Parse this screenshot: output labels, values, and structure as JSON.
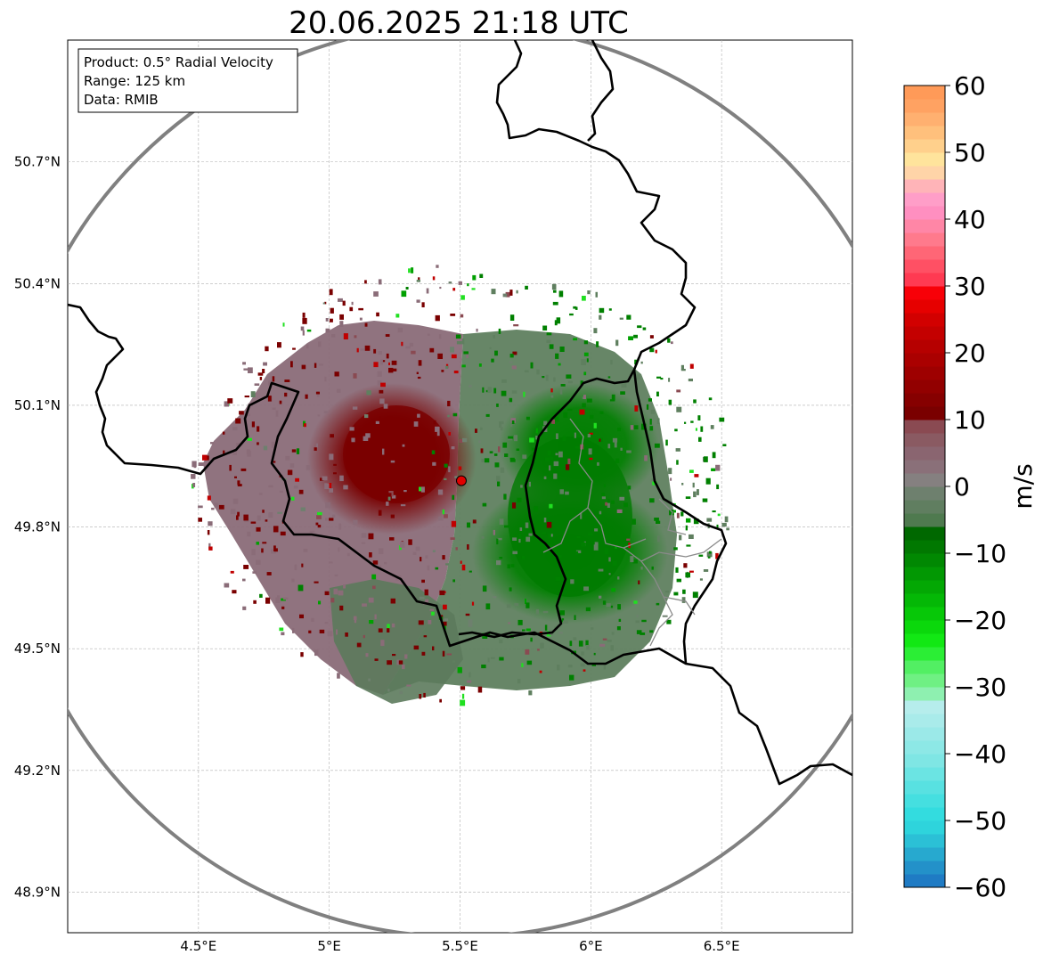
{
  "title": "20.06.2025 21:18 UTC",
  "info_box": {
    "line1": "Product: 0.5° Radial Velocity",
    "line2": "Range: 125 km",
    "line3": "Data: RMIB"
  },
  "map": {
    "lon_range": [
      4.0,
      7.0
    ],
    "lat_range": [
      48.8,
      51.0
    ],
    "lon_ticks": [
      {
        "value": 4.5,
        "label": "4.5°E"
      },
      {
        "value": 5.0,
        "label": "5°E"
      },
      {
        "value": 5.5,
        "label": "5.5°E"
      },
      {
        "value": 6.0,
        "label": "6°E"
      },
      {
        "value": 6.5,
        "label": "6.5°E"
      }
    ],
    "lat_ticks": [
      {
        "value": 50.7,
        "label": "50.7°N"
      },
      {
        "value": 50.4,
        "label": "50.4°N"
      },
      {
        "value": 50.1,
        "label": "50.1°N"
      },
      {
        "value": 49.8,
        "label": "49.8°N"
      },
      {
        "value": 49.5,
        "label": "49.5°N"
      },
      {
        "value": 49.2,
        "label": "49.2°N"
      },
      {
        "value": 48.9,
        "label": "48.9°N"
      }
    ],
    "radar_site": {
      "lon": 5.505,
      "lat": 49.914
    },
    "range_km": 125,
    "gridlines": true
  },
  "colorbar": {
    "label": "m/s",
    "min": -60,
    "max": 60,
    "ticks": [
      {
        "value": 60,
        "label": "60"
      },
      {
        "value": 50,
        "label": "50"
      },
      {
        "value": 40,
        "label": "40"
      },
      {
        "value": 30,
        "label": "30"
      },
      {
        "value": 20,
        "label": "20"
      },
      {
        "value": 10,
        "label": "10"
      },
      {
        "value": 0,
        "label": "0"
      },
      {
        "value": -10,
        "label": "−10"
      },
      {
        "value": -20,
        "label": "−20"
      },
      {
        "value": -30,
        "label": "−30"
      },
      {
        "value": -40,
        "label": "−40"
      },
      {
        "value": -50,
        "label": "−50"
      },
      {
        "value": -60,
        "label": "−60"
      }
    ],
    "stops": [
      {
        "from": -60,
        "to": -58,
        "color": "#1f7bc4"
      },
      {
        "from": -58,
        "to": -56,
        "color": "#2391c9"
      },
      {
        "from": -56,
        "to": -54,
        "color": "#27a9cf"
      },
      {
        "from": -54,
        "to": -52,
        "color": "#2bc0d6"
      },
      {
        "from": -52,
        "to": -50,
        "color": "#2ed4dc"
      },
      {
        "from": -50,
        "to": -48,
        "color": "#33dcdf"
      },
      {
        "from": -48,
        "to": -46,
        "color": "#45dfe0"
      },
      {
        "from": -46,
        "to": -44,
        "color": "#58e1e1"
      },
      {
        "from": -44,
        "to": -42,
        "color": "#6be4e3"
      },
      {
        "from": -42,
        "to": -40,
        "color": "#7fe6e4"
      },
      {
        "from": -40,
        "to": -38,
        "color": "#8de8e6"
      },
      {
        "from": -38,
        "to": -36,
        "color": "#9be9e8"
      },
      {
        "from": -36,
        "to": -34,
        "color": "#a9ebea"
      },
      {
        "from": -34,
        "to": -32,
        "color": "#b6edec"
      },
      {
        "from": -32,
        "to": -30,
        "color": "#8ef0b0"
      },
      {
        "from": -30,
        "to": -28,
        "color": "#6ff083"
      },
      {
        "from": -28,
        "to": -26,
        "color": "#52ef63"
      },
      {
        "from": -26,
        "to": -24,
        "color": "#2bee35"
      },
      {
        "from": -24,
        "to": -22,
        "color": "#12e814"
      },
      {
        "from": -22,
        "to": -20,
        "color": "#0bd80c"
      },
      {
        "from": -20,
        "to": -18,
        "color": "#07c808"
      },
      {
        "from": -18,
        "to": -16,
        "color": "#04b806"
      },
      {
        "from": -16,
        "to": -14,
        "color": "#03a804"
      },
      {
        "from": -14,
        "to": -12,
        "color": "#029803"
      },
      {
        "from": -12,
        "to": -10,
        "color": "#018802"
      },
      {
        "from": -10,
        "to": -8,
        "color": "#017801"
      },
      {
        "from": -8,
        "to": -6,
        "color": "#006800"
      },
      {
        "from": -6,
        "to": -4,
        "color": "#4f7a4f"
      },
      {
        "from": -4,
        "to": -2,
        "color": "#607e60"
      },
      {
        "from": -2,
        "to": 0,
        "color": "#6e806e"
      },
      {
        "from": 0,
        "to": 2,
        "color": "#858080"
      },
      {
        "from": 2,
        "to": 4,
        "color": "#8a7079"
      },
      {
        "from": 4,
        "to": 6,
        "color": "#8a6570"
      },
      {
        "from": 6,
        "to": 8,
        "color": "#8a5a62"
      },
      {
        "from": 8,
        "to": 10,
        "color": "#8a4a52"
      },
      {
        "from": 10,
        "to": 12,
        "color": "#7a0000"
      },
      {
        "from": 12,
        "to": 14,
        "color": "#860000"
      },
      {
        "from": 14,
        "to": 16,
        "color": "#920000"
      },
      {
        "from": 16,
        "to": 18,
        "color": "#9e0000"
      },
      {
        "from": 18,
        "to": 20,
        "color": "#aa0000"
      },
      {
        "from": 20,
        "to": 22,
        "color": "#b60000"
      },
      {
        "from": 22,
        "to": 24,
        "color": "#c40000"
      },
      {
        "from": 24,
        "to": 26,
        "color": "#d20000"
      },
      {
        "from": 26,
        "to": 28,
        "color": "#e60000"
      },
      {
        "from": 28,
        "to": 30,
        "color": "#f80008"
      },
      {
        "from": 30,
        "to": 32,
        "color": "#ff3a52"
      },
      {
        "from": 32,
        "to": 34,
        "color": "#ff5064"
      },
      {
        "from": 34,
        "to": 36,
        "color": "#ff6676"
      },
      {
        "from": 36,
        "to": 38,
        "color": "#ff7a8c"
      },
      {
        "from": 38,
        "to": 40,
        "color": "#ff86a6"
      },
      {
        "from": 40,
        "to": 42,
        "color": "#ff8fc0"
      },
      {
        "from": 42,
        "to": 44,
        "color": "#ff9ec8"
      },
      {
        "from": 44,
        "to": 46,
        "color": "#ffb4b8"
      },
      {
        "from": 46,
        "to": 48,
        "color": "#ffd4a8"
      },
      {
        "from": 48,
        "to": 50,
        "color": "#ffe49c"
      },
      {
        "from": 50,
        "to": 52,
        "color": "#ffd08c"
      },
      {
        "from": 52,
        "to": 54,
        "color": "#ffc07c"
      },
      {
        "from": 54,
        "to": 56,
        "color": "#ffb070"
      },
      {
        "from": 56,
        "to": 58,
        "color": "#ffa262"
      },
      {
        "from": 58,
        "to": 60,
        "color": "#ff9a58"
      }
    ]
  },
  "colors": {
    "range_ring": "#808080",
    "border": "#000000",
    "gridline": "#b0b0b0",
    "radar_site": "#e00000",
    "inbound_core": "#008000",
    "outbound_core": "#7a0000",
    "near_zero_green": "#5f7f5f",
    "near_zero_mauve": "#8a6c78"
  }
}
